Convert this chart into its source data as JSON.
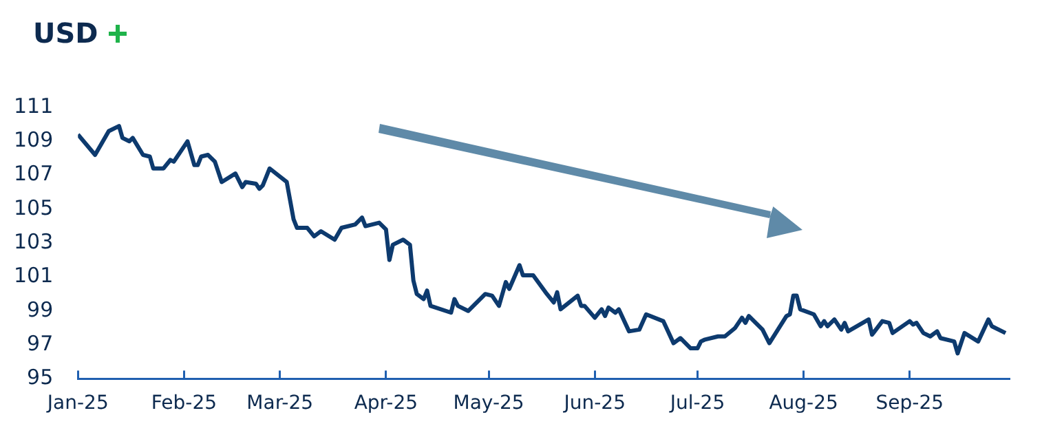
{
  "chart_data": {
    "type": "line",
    "title": "USD",
    "x": [
      "2025-01-01",
      "2025-01-06",
      "2025-01-08",
      "2025-01-10",
      "2025-01-13",
      "2025-01-14",
      "2025-01-16",
      "2025-01-17",
      "2025-01-20",
      "2025-01-22",
      "2025-01-23",
      "2025-01-26",
      "2025-01-28",
      "2025-01-29",
      "2025-01-31",
      "2025-02-02",
      "2025-02-04",
      "2025-02-05",
      "2025-02-06",
      "2025-02-08",
      "2025-02-10",
      "2025-02-12",
      "2025-02-16",
      "2025-02-18",
      "2025-02-19",
      "2025-02-22",
      "2025-02-23",
      "2025-02-24",
      "2025-02-26",
      "2025-03-03",
      "2025-03-04",
      "2025-03-05",
      "2025-03-06",
      "2025-03-09",
      "2025-03-11",
      "2025-03-13",
      "2025-03-17",
      "2025-03-19",
      "2025-03-23",
      "2025-03-25",
      "2025-03-26",
      "2025-03-30",
      "2025-04-01",
      "2025-04-02",
      "2025-04-03",
      "2025-04-06",
      "2025-04-08",
      "2025-04-09",
      "2025-04-10",
      "2025-04-12",
      "2025-04-13",
      "2025-04-14",
      "2025-04-20",
      "2025-04-21",
      "2025-04-22",
      "2025-04-25",
      "2025-04-30",
      "2025-05-02",
      "2025-05-04",
      "2025-05-06",
      "2025-05-07",
      "2025-05-10",
      "2025-05-11",
      "2025-05-14",
      "2025-05-18",
      "2025-05-20",
      "2025-05-21",
      "2025-05-22",
      "2025-05-27",
      "2025-05-28",
      "2025-05-29",
      "2025-06-01",
      "2025-06-03",
      "2025-06-04",
      "2025-06-05",
      "2025-06-07",
      "2025-06-08",
      "2025-06-11",
      "2025-06-14",
      "2025-06-16",
      "2025-06-21",
      "2025-06-24",
      "2025-06-26",
      "2025-06-29",
      "2025-07-01",
      "2025-07-02",
      "2025-07-03",
      "2025-07-07",
      "2025-07-09",
      "2025-07-12",
      "2025-07-14",
      "2025-07-15",
      "2025-07-16",
      "2025-07-20",
      "2025-07-22",
      "2025-07-27",
      "2025-07-28",
      "2025-07-29",
      "2025-07-30",
      "2025-07-31",
      "2025-08-04",
      "2025-08-06",
      "2025-08-07",
      "2025-08-08",
      "2025-08-10",
      "2025-08-12",
      "2025-08-13",
      "2025-08-14",
      "2025-08-20",
      "2025-08-21",
      "2025-08-24",
      "2025-08-26",
      "2025-08-27",
      "2025-09-01",
      "2025-09-02",
      "2025-09-03",
      "2025-09-05",
      "2025-09-07",
      "2025-09-09",
      "2025-09-10",
      "2025-09-14",
      "2025-09-15",
      "2025-09-17",
      "2025-09-21",
      "2025-09-24",
      "2025-09-25",
      "2025-09-29"
    ],
    "values": [
      109.4,
      108.2,
      108.9,
      109.6,
      109.9,
      109.2,
      109.0,
      109.2,
      108.2,
      108.1,
      107.4,
      107.4,
      107.9,
      107.8,
      108.4,
      109.0,
      107.6,
      107.6,
      108.1,
      108.2,
      107.8,
      106.6,
      107.1,
      106.3,
      106.6,
      106.5,
      106.2,
      106.4,
      107.4,
      106.6,
      105.5,
      104.4,
      103.9,
      103.9,
      103.4,
      103.7,
      103.2,
      103.9,
      104.1,
      104.5,
      104.0,
      104.2,
      103.8,
      102.0,
      102.9,
      103.2,
      102.9,
      100.8,
      100.0,
      99.7,
      100.2,
      99.3,
      98.9,
      99.7,
      99.3,
      99.0,
      100.0,
      99.9,
      99.3,
      100.7,
      100.3,
      101.7,
      101.1,
      101.1,
      100.0,
      99.5,
      100.1,
      99.1,
      99.9,
      99.3,
      99.3,
      98.6,
      99.1,
      98.7,
      99.2,
      98.9,
      99.1,
      97.8,
      97.9,
      98.8,
      98.4,
      97.1,
      97.4,
      96.8,
      96.8,
      97.2,
      97.3,
      97.5,
      97.5,
      98.0,
      98.6,
      98.3,
      98.7,
      97.9,
      97.1,
      98.7,
      98.8,
      99.9,
      99.9,
      99.1,
      98.8,
      98.1,
      98.4,
      98.1,
      98.5,
      97.9,
      98.3,
      97.8,
      98.5,
      97.6,
      98.4,
      98.3,
      97.7,
      98.4,
      98.2,
      98.3,
      97.7,
      97.5,
      97.8,
      97.4,
      97.2,
      96.5,
      97.7,
      97.2,
      98.5,
      98.1,
      97.7
    ],
    "color": "#0d3a6e",
    "xlim": [
      "2025-01-01",
      "2025-09-30"
    ],
    "xticks": [
      {
        "value": "2025-01-01",
        "label": "Jan-25"
      },
      {
        "value": "2025-02-01",
        "label": "Feb-25"
      },
      {
        "value": "2025-03-01",
        "label": "Mar-25"
      },
      {
        "value": "2025-04-01",
        "label": "Apr-25"
      },
      {
        "value": "2025-05-01",
        "label": "May-25"
      },
      {
        "value": "2025-06-01",
        "label": "Jun-25"
      },
      {
        "value": "2025-07-01",
        "label": "Jul-25"
      },
      {
        "value": "2025-08-01",
        "label": "Aug-25"
      },
      {
        "value": "2025-09-01",
        "label": "Sep-25"
      }
    ],
    "ylim": [
      95,
      111
    ],
    "yticks": [
      95,
      97,
      99,
      101,
      103,
      105,
      107,
      109,
      111
    ]
  }
}
